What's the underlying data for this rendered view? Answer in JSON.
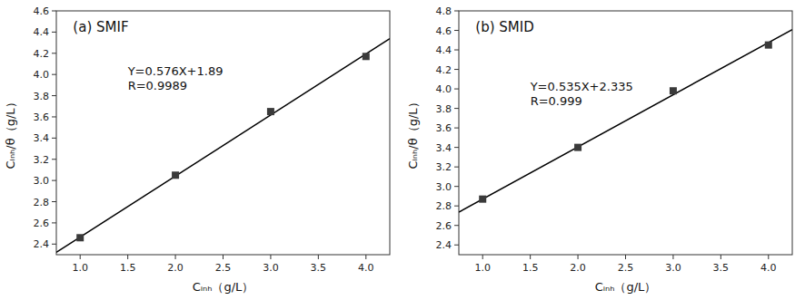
{
  "chart_data": [
    {
      "type": "scatter",
      "title": "(a) SMIF",
      "x_label": "Cᵢₙₕ（g/L）",
      "y_label": "Cᵢₙₕ/θ（g/L）",
      "series": [
        {
          "type": "scatter",
          "x": [
            1.0,
            2.0,
            3.0,
            4.0
          ],
          "values": [
            2.46,
            3.05,
            3.65,
            4.17
          ],
          "color": "#3a3a3a",
          "marker": "square"
        },
        {
          "type": "line",
          "x": [
            0.75,
            4.25
          ],
          "values": [
            2.322,
            4.338
          ],
          "color": "#000000"
        }
      ],
      "annotations": [
        {
          "x": 1.5,
          "y": 4.1,
          "lines": [
            "Y=0.576X+1.89",
            "R=0.9989"
          ]
        }
      ],
      "xlim": [
        0.75,
        4.25
      ],
      "ylim": [
        2.3,
        4.6
      ],
      "xticks": [
        {
          "value": 1,
          "label": "1.0"
        },
        1.5,
        {
          "value": 2,
          "label": "2.0"
        },
        2.5,
        {
          "value": 3,
          "label": "3.0"
        },
        3.5,
        {
          "value": 4,
          "label": "4.0"
        }
      ],
      "yticks": [
        2.4,
        2.6,
        2.8,
        {
          "value": 3,
          "label": "3.0"
        },
        3.2,
        3.4,
        3.6,
        3.8,
        {
          "value": 4,
          "label": "4.0"
        },
        4.2,
        4.4,
        4.6
      ],
      "grid": false
    },
    {
      "type": "scatter",
      "title": "(b) SMID",
      "x_label": "Cᵢₙₕ（g/L）",
      "y_label": "Cᵢₙₕ/θ（g/L）",
      "series": [
        {
          "type": "scatter",
          "x": [
            1.0,
            2.0,
            3.0,
            4.0
          ],
          "values": [
            2.87,
            3.4,
            3.98,
            4.45
          ],
          "color": "#3a3a3a",
          "marker": "square"
        },
        {
          "type": "line",
          "x": [
            0.75,
            4.25
          ],
          "values": [
            2.73625,
            4.60875
          ],
          "color": "#000000"
        }
      ],
      "annotations": [
        {
          "x": 1.5,
          "y": 4.1,
          "lines": [
            "Y=0.535X+2.335",
            "R=0.999"
          ]
        }
      ],
      "xlim": [
        0.75,
        4.25
      ],
      "ylim": [
        2.3,
        4.8
      ],
      "xticks": [
        {
          "value": 1,
          "label": "1.0"
        },
        1.5,
        {
          "value": 2,
          "label": "2.0"
        },
        2.5,
        {
          "value": 3,
          "label": "3.0"
        },
        3.5,
        {
          "value": 4,
          "label": "4.0"
        }
      ],
      "yticks": [
        2.4,
        2.6,
        2.8,
        {
          "value": 3,
          "label": "3.0"
        },
        3.2,
        3.4,
        3.6,
        3.8,
        {
          "value": 4,
          "label": "4.0"
        },
        4.2,
        4.4,
        4.6,
        4.8
      ],
      "grid": false
    }
  ]
}
